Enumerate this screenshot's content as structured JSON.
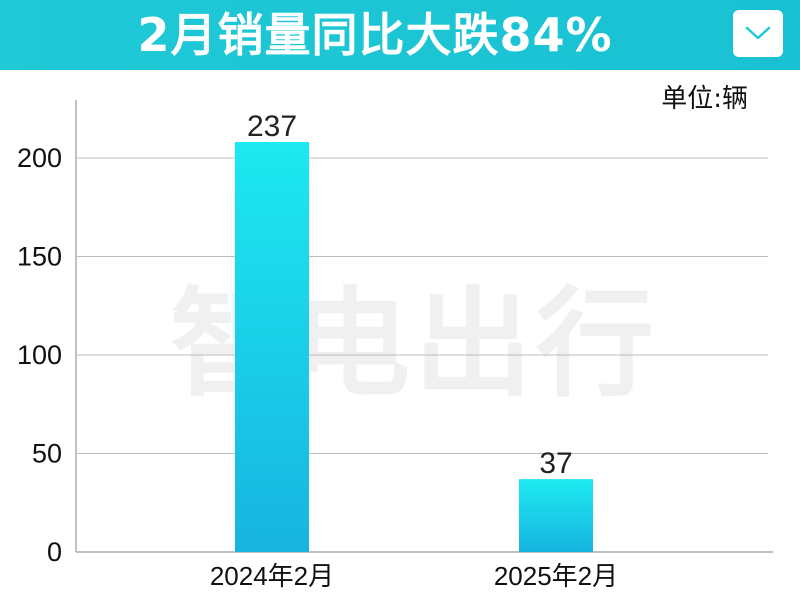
{
  "header": {
    "title": "2月销量同比大跌84%",
    "dropdown_icon": "chevron-down-icon"
  },
  "unit_label": "单位:辆",
  "watermark": "智电出行",
  "colors": {
    "banner": "#1fc9d6",
    "bar_top": "#1de9f0",
    "bar_bottom": "#17b4e0",
    "grid": "#bdbdbd"
  },
  "chart_data": {
    "type": "bar",
    "title": "2月销量同比大跌84%",
    "categories": [
      "2024年2月",
      "2025年2月"
    ],
    "values": [
      237,
      37
    ],
    "data_labels": [
      "237",
      "37"
    ],
    "xlabel": "",
    "ylabel": "",
    "ylim": [
      0,
      230
    ],
    "yticks": [
      0,
      50,
      100,
      150,
      200
    ],
    "ytick_labels": [
      "0",
      "50",
      "100",
      "150",
      "200"
    ],
    "grid": true,
    "legend": "none"
  }
}
